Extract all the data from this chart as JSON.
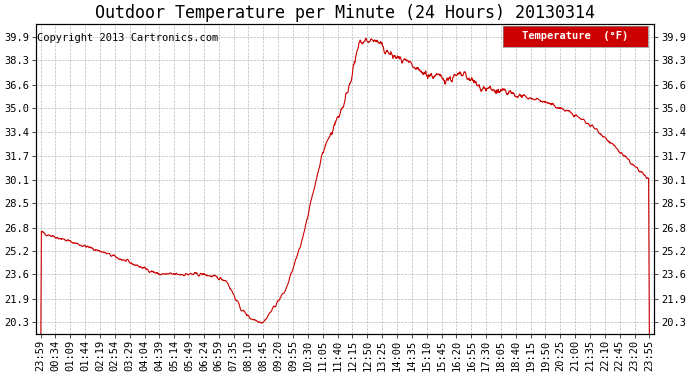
{
  "title": "Outdoor Temperature per Minute (24 Hours) 20130314",
  "copyright_text": "Copyright 2013 Cartronics.com",
  "legend_label": "Temperature  (°F)",
  "line_color": "#cc0000",
  "plot_bg_color": "#ffffff",
  "grid_color": "#aaaaaa",
  "yticks": [
    20.3,
    21.9,
    23.6,
    25.2,
    26.8,
    28.5,
    30.1,
    31.7,
    33.4,
    35.0,
    36.6,
    38.3,
    39.9
  ],
  "ylim": [
    19.5,
    40.8
  ],
  "xtick_labels": [
    "23:59",
    "00:34",
    "01:09",
    "01:44",
    "02:19",
    "02:54",
    "03:29",
    "04:04",
    "04:39",
    "05:14",
    "05:49",
    "06:24",
    "06:59",
    "07:35",
    "08:10",
    "08:45",
    "09:20",
    "09:55",
    "10:30",
    "11:05",
    "11:40",
    "12:15",
    "12:50",
    "13:25",
    "14:00",
    "14:35",
    "15:10",
    "15:45",
    "16:20",
    "16:55",
    "17:30",
    "18:05",
    "18:40",
    "19:15",
    "19:50",
    "20:25",
    "21:00",
    "21:35",
    "22:10",
    "22:45",
    "23:20",
    "23:55"
  ],
  "waypoints_x": [
    0,
    4,
    8,
    11,
    12.5,
    13.5,
    14.2,
    15.0,
    16.5,
    17.5,
    19.0,
    20.5,
    21.5,
    22.5,
    23.5,
    24.5,
    25.5,
    26.5,
    27.5,
    28.5,
    29.5,
    30.5,
    31.5,
    32.5,
    33.5,
    34.5,
    35.5,
    36.5,
    37.5,
    38.5,
    39.5,
    40.5,
    41.0
  ],
  "waypoints_y": [
    26.5,
    25.2,
    23.6,
    23.6,
    23.2,
    21.2,
    20.55,
    20.3,
    22.5,
    25.5,
    32.0,
    35.5,
    39.5,
    39.7,
    38.7,
    38.2,
    37.5,
    37.2,
    37.0,
    37.3,
    36.5,
    36.2,
    36.0,
    35.8,
    35.6,
    35.2,
    34.8,
    34.2,
    33.5,
    32.5,
    31.5,
    30.5,
    30.1
  ],
  "legend_bg_color": "#cc0000",
  "legend_text_color": "#ffffff",
  "title_fontsize": 12,
  "axis_fontsize": 7.5,
  "copyright_fontsize": 7.5
}
